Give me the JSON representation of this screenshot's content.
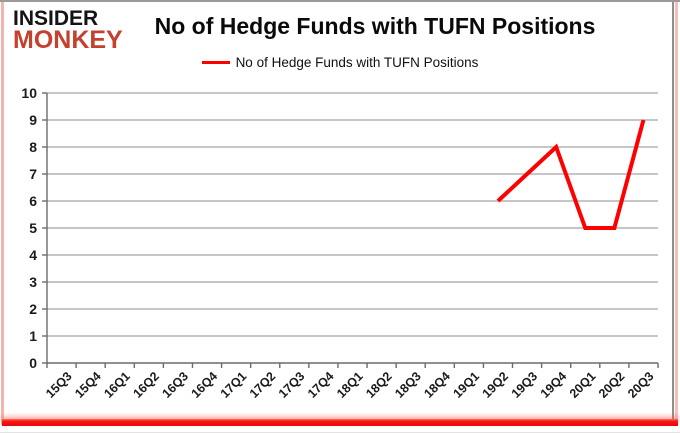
{
  "page": {
    "logo": {
      "line1": "INSIDER",
      "line2": "MONKEY",
      "line1_color": "#141414",
      "line2_color": "#c4402f"
    },
    "title": "No of Hedge Funds with TUFN Positions",
    "legend": {
      "label": "No of Hedge Funds with TUFN Positions",
      "swatch_color": "#ff0000"
    }
  },
  "chart_data": {
    "type": "line",
    "title": "No of Hedge Funds with TUFN Positions",
    "categories": [
      "15Q3",
      "15Q4",
      "16Q1",
      "16Q2",
      "16Q3",
      "16Q4",
      "17Q1",
      "17Q2",
      "17Q3",
      "17Q4",
      "18Q1",
      "18Q2",
      "18Q3",
      "18Q4",
      "19Q1",
      "19Q2",
      "19Q3",
      "19Q4",
      "20Q1",
      "20Q2",
      "20Q3"
    ],
    "series": [
      {
        "name": "No of Hedge Funds with TUFN Positions",
        "color": "#ff0000",
        "line_width": 4,
        "values": [
          null,
          null,
          null,
          null,
          null,
          null,
          null,
          null,
          null,
          null,
          null,
          null,
          null,
          null,
          null,
          6,
          7,
          8,
          5,
          5,
          9
        ]
      }
    ],
    "xlabel": "",
    "ylabel": "",
    "ylim": [
      0,
      10
    ],
    "ytick_step": 1,
    "grid": true,
    "legend_position": "top",
    "colors": {
      "gridline": "#a3a3a3",
      "axis": "#6b6b6b",
      "tick_label": "#1b1b1b"
    }
  }
}
